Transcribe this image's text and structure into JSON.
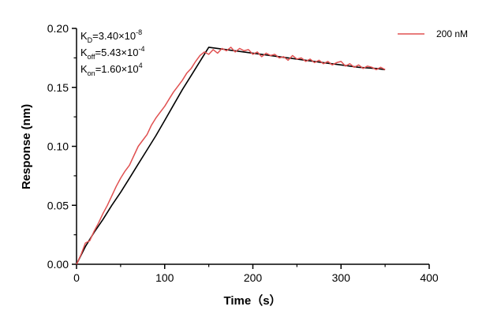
{
  "chart_data": {
    "type": "line",
    "xlabel": "Time（s）",
    "ylabel": "Response (nm)",
    "xlim": [
      0,
      400
    ],
    "ylim": [
      0,
      0.2
    ],
    "x_ticks": [
      "0",
      "100",
      "200",
      "300",
      "400"
    ],
    "y_ticks": [
      "0.00",
      "0.05",
      "0.10",
      "0.15",
      "0.20"
    ],
    "grid": false,
    "legend": "top-right",
    "annotations": [
      {
        "prefix": "K",
        "sub": "D",
        "mid": "=3.40×10",
        "sup": "-8"
      },
      {
        "prefix": "K",
        "sub": "off",
        "mid": "=5.43×10",
        "sup": "-4"
      },
      {
        "prefix": "K",
        "sub": "on",
        "mid": "=1.60×10",
        "sup": "4"
      }
    ],
    "series": [
      {
        "name": "200 nM",
        "color": "#e05050",
        "x": [
          0,
          5,
          10,
          15,
          20,
          25,
          30,
          35,
          40,
          45,
          50,
          55,
          60,
          65,
          70,
          75,
          80,
          85,
          90,
          95,
          100,
          105,
          110,
          115,
          120,
          125,
          130,
          135,
          140,
          145,
          150,
          155,
          160,
          165,
          170,
          175,
          180,
          185,
          190,
          195,
          200,
          205,
          210,
          215,
          220,
          225,
          230,
          235,
          240,
          245,
          250,
          255,
          260,
          265,
          270,
          275,
          280,
          285,
          290,
          295,
          300,
          305,
          310,
          315,
          320,
          325,
          330,
          335,
          340,
          345,
          350
        ],
        "values": [
          0.0,
          0.008,
          0.018,
          0.02,
          0.028,
          0.035,
          0.043,
          0.05,
          0.058,
          0.066,
          0.073,
          0.079,
          0.084,
          0.092,
          0.1,
          0.105,
          0.11,
          0.118,
          0.124,
          0.129,
          0.134,
          0.14,
          0.146,
          0.151,
          0.156,
          0.162,
          0.166,
          0.172,
          0.177,
          0.18,
          0.178,
          0.182,
          0.179,
          0.183,
          0.181,
          0.184,
          0.18,
          0.183,
          0.181,
          0.182,
          0.178,
          0.18,
          0.176,
          0.179,
          0.177,
          0.178,
          0.175,
          0.176,
          0.173,
          0.177,
          0.174,
          0.175,
          0.172,
          0.174,
          0.171,
          0.173,
          0.17,
          0.172,
          0.169,
          0.171,
          0.172,
          0.168,
          0.17,
          0.167,
          0.169,
          0.166,
          0.168,
          0.167,
          0.165,
          0.167,
          0.165
        ]
      }
    ],
    "fit": {
      "color": "#000000",
      "x": [
        0,
        10,
        20,
        30,
        40,
        50,
        60,
        70,
        80,
        90,
        100,
        110,
        120,
        130,
        140,
        150,
        160,
        180,
        200,
        220,
        240,
        260,
        280,
        300,
        320,
        340,
        350
      ],
      "values": [
        0.0,
        0.015,
        0.027,
        0.038,
        0.05,
        0.061,
        0.073,
        0.085,
        0.097,
        0.109,
        0.122,
        0.135,
        0.148,
        0.16,
        0.172,
        0.184,
        0.183,
        0.181,
        0.179,
        0.177,
        0.175,
        0.173,
        0.171,
        0.169,
        0.167,
        0.166,
        0.165
      ]
    }
  }
}
